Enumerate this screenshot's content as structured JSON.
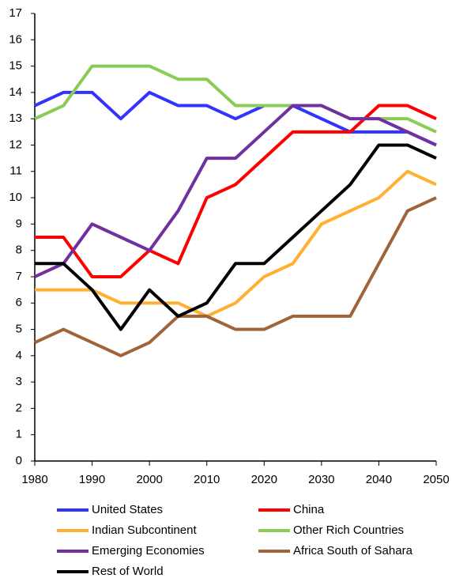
{
  "chart_data": {
    "type": "line",
    "x": [
      1980,
      1985,
      1990,
      1995,
      2000,
      2005,
      2010,
      2015,
      2020,
      2025,
      2030,
      2035,
      2040,
      2045,
      2050
    ],
    "series": [
      {
        "name": "United States",
        "color": "#3333ff",
        "values": [
          13.5,
          14,
          14,
          13,
          14,
          13.5,
          13.5,
          13,
          13.5,
          13.5,
          13,
          12.5,
          12.5,
          12.5,
          12
        ]
      },
      {
        "name": "China",
        "color": "#ff0000",
        "values": [
          8.5,
          8.5,
          7,
          7,
          8,
          7.5,
          10,
          10.5,
          11.5,
          12.5,
          12.5,
          12.5,
          13.5,
          13.5,
          13
        ]
      },
      {
        "name": "Indian Subcontinent",
        "color": "#ffb030",
        "values": [
          6.5,
          6.5,
          6.5,
          6,
          6,
          6,
          5.5,
          6,
          7,
          7.5,
          9,
          9.5,
          10,
          11,
          10.5
        ]
      },
      {
        "name": "Other Rich Countries",
        "color": "#88cc55",
        "values": [
          13,
          13.5,
          15,
          15,
          15,
          14.5,
          14.5,
          13.5,
          13.5,
          13.5,
          13.5,
          13,
          13,
          13,
          12.5
        ]
      },
      {
        "name": "Emerging Economies",
        "color": "#7030a0",
        "values": [
          7,
          7.5,
          9,
          8.5,
          8,
          9.5,
          11.5,
          11.5,
          12.5,
          13.5,
          13.5,
          13,
          13,
          12.5,
          12
        ]
      },
      {
        "name": "Africa South of Sahara",
        "color": "#a0643a",
        "values": [
          4.5,
          5,
          4.5,
          4,
          4.5,
          5.5,
          5.5,
          5,
          5,
          5.5,
          5.5,
          5.5,
          7.5,
          9.5,
          10
        ]
      },
      {
        "name": "Rest of World",
        "color": "#000000",
        "values": [
          7.5,
          7.5,
          6.5,
          5,
          6.5,
          5.5,
          6,
          7.5,
          7.5,
          8.5,
          9.5,
          10.5,
          12,
          12,
          11.5
        ]
      }
    ],
    "xlim": [
      1980,
      2050
    ],
    "xticks": [
      1980,
      1990,
      2000,
      2010,
      2020,
      2030,
      2040,
      2050
    ],
    "ylim": [
      0,
      17
    ],
    "yticks": [
      0,
      1,
      2,
      3,
      4,
      5,
      6,
      7,
      8,
      9,
      10,
      11,
      12,
      13,
      14,
      15,
      16,
      17
    ]
  }
}
